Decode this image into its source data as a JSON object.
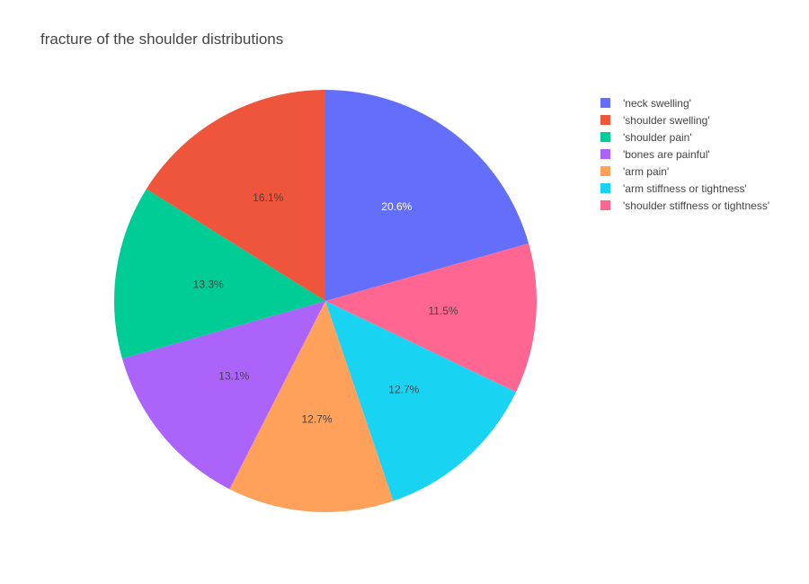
{
  "chart_data": {
    "type": "pie",
    "title": "fracture of the shoulder distributions",
    "direction": "clockwise",
    "start": "12 o'clock",
    "slices": [
      {
        "label": "'neck swelling'",
        "percent": 20.6,
        "percent_text": "20.6%",
        "color": "#636efa",
        "text_color": "#ffffff"
      },
      {
        "label": "'shoulder stiffness or tightness'",
        "percent": 11.5,
        "percent_text": "11.5%",
        "color": "#ff6692",
        "text_color": "#444444"
      },
      {
        "label": "'arm stiffness or tightness'",
        "percent": 12.7,
        "percent_text": "12.7%",
        "color": "#19d3f3",
        "text_color": "#444444"
      },
      {
        "label": "'arm pain'",
        "percent": 12.7,
        "percent_text": "12.7%",
        "color": "#ffa15a",
        "text_color": "#444444"
      },
      {
        "label": "'bones are painful'",
        "percent": 13.1,
        "percent_text": "13.1%",
        "color": "#ab63fa",
        "text_color": "#444444"
      },
      {
        "label": "'shoulder pain'",
        "percent": 13.3,
        "percent_text": "13.3%",
        "color": "#00cc96",
        "text_color": "#444444"
      },
      {
        "label": "'shoulder swelling'",
        "percent": 16.1,
        "percent_text": "16.1%",
        "color": "#ef553b",
        "text_color": "#444444"
      }
    ],
    "legend": {
      "position": "top-right",
      "items": [
        {
          "label": "'neck swelling'",
          "color": "#636efa"
        },
        {
          "label": "'shoulder swelling'",
          "color": "#ef553b"
        },
        {
          "label": "'shoulder pain'",
          "color": "#00cc96"
        },
        {
          "label": "'bones are painful'",
          "color": "#ab63fa"
        },
        {
          "label": "'arm pain'",
          "color": "#ffa15a"
        },
        {
          "label": "'arm stiffness or tightness'",
          "color": "#19d3f3"
        },
        {
          "label": "'shoulder stiffness or tightness'",
          "color": "#ff6692"
        }
      ]
    }
  }
}
